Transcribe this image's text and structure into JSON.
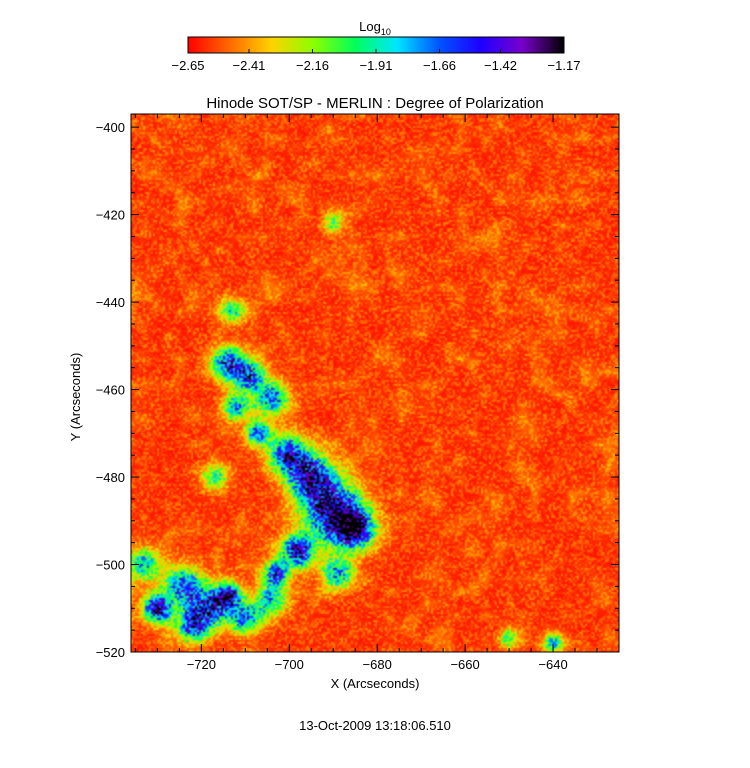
{
  "chart_data": {
    "type": "heatmap",
    "title": "Hinode SOT/SP - MERLIN : Degree of Polarization",
    "xlabel": "X (Arcseconds)",
    "ylabel": "Y (Arcseconds)",
    "xlim": [
      -736,
      -625
    ],
    "ylim": [
      -520,
      -397
    ],
    "x_ticks": [
      -720,
      -700,
      -680,
      -660,
      -640
    ],
    "y_ticks": [
      -400,
      -420,
      -440,
      -460,
      -480,
      -500,
      -520
    ],
    "colorbar": {
      "label_base": "Log",
      "label_sub": "10",
      "range": [
        -2.65,
        -1.17
      ],
      "ticks": [
        -2.65,
        -2.41,
        -2.16,
        -1.91,
        -1.66,
        -1.42,
        -1.17
      ],
      "colors": [
        "#ff0000",
        "#ff6a00",
        "#ffd200",
        "#8cff00",
        "#00ff5a",
        "#00e6ff",
        "#0055ff",
        "#1e00ff",
        "#7800cc",
        "#000000"
      ]
    },
    "features": [
      {
        "name": "network-blob",
        "x": -690,
        "y": -488,
        "sigma": 4.5,
        "peak": 0.95
      },
      {
        "name": "network-blob",
        "x": -685,
        "y": -492,
        "sigma": 3.0,
        "peak": 0.9
      },
      {
        "name": "network-blob",
        "x": -695,
        "y": -480,
        "sigma": 3.5,
        "peak": 0.8
      },
      {
        "name": "network-blob",
        "x": -700,
        "y": -475,
        "sigma": 3.0,
        "peak": 0.75
      },
      {
        "name": "network-blob",
        "x": -698,
        "y": -497,
        "sigma": 2.5,
        "peak": 0.85
      },
      {
        "name": "network-blob",
        "x": -703,
        "y": -502,
        "sigma": 2.0,
        "peak": 0.7
      },
      {
        "name": "network-blob",
        "x": -689,
        "y": -502,
        "sigma": 2.5,
        "peak": 0.6
      },
      {
        "name": "network-blob",
        "x": -714,
        "y": -454,
        "sigma": 2.5,
        "peak": 0.78
      },
      {
        "name": "network-blob",
        "x": -709,
        "y": -457,
        "sigma": 2.5,
        "peak": 0.72
      },
      {
        "name": "network-blob",
        "x": -704,
        "y": -462,
        "sigma": 2.5,
        "peak": 0.66
      },
      {
        "name": "network-blob",
        "x": -712,
        "y": -464,
        "sigma": 2.0,
        "peak": 0.6
      },
      {
        "name": "network-blob",
        "x": -707,
        "y": -470,
        "sigma": 2.0,
        "peak": 0.62
      },
      {
        "name": "network-blob",
        "x": -730,
        "y": -510,
        "sigma": 2.2,
        "peak": 0.9
      },
      {
        "name": "network-blob",
        "x": -724,
        "y": -505,
        "sigma": 3.0,
        "peak": 0.7
      },
      {
        "name": "network-blob",
        "x": -718,
        "y": -510,
        "sigma": 3.0,
        "peak": 0.7
      },
      {
        "name": "network-blob",
        "x": -714,
        "y": -507,
        "sigma": 2.0,
        "peak": 0.85
      },
      {
        "name": "network-blob",
        "x": -722,
        "y": -514,
        "sigma": 2.5,
        "peak": 0.7
      },
      {
        "name": "network-blob",
        "x": -710,
        "y": -512,
        "sigma": 2.5,
        "peak": 0.6
      },
      {
        "name": "network-blob",
        "x": -704,
        "y": -508,
        "sigma": 2.5,
        "peak": 0.55
      },
      {
        "name": "network-blob",
        "x": -733,
        "y": -500,
        "sigma": 2.5,
        "peak": 0.55
      },
      {
        "name": "network-blob",
        "x": -713,
        "y": -442,
        "sigma": 2.0,
        "peak": 0.45
      },
      {
        "name": "network-blob",
        "x": -717,
        "y": -480,
        "sigma": 2.0,
        "peak": 0.45
      },
      {
        "name": "network-blob",
        "x": -690,
        "y": -422,
        "sigma": 1.5,
        "peak": 0.4
      },
      {
        "name": "network-blob",
        "x": -640,
        "y": -518,
        "sigma": 1.5,
        "peak": 0.5
      },
      {
        "name": "network-blob",
        "x": -650,
        "y": -517,
        "sigma": 1.5,
        "peak": 0.4
      }
    ]
  },
  "footer": {
    "timestamp": "13-Oct-2009 13:18:06.510"
  }
}
